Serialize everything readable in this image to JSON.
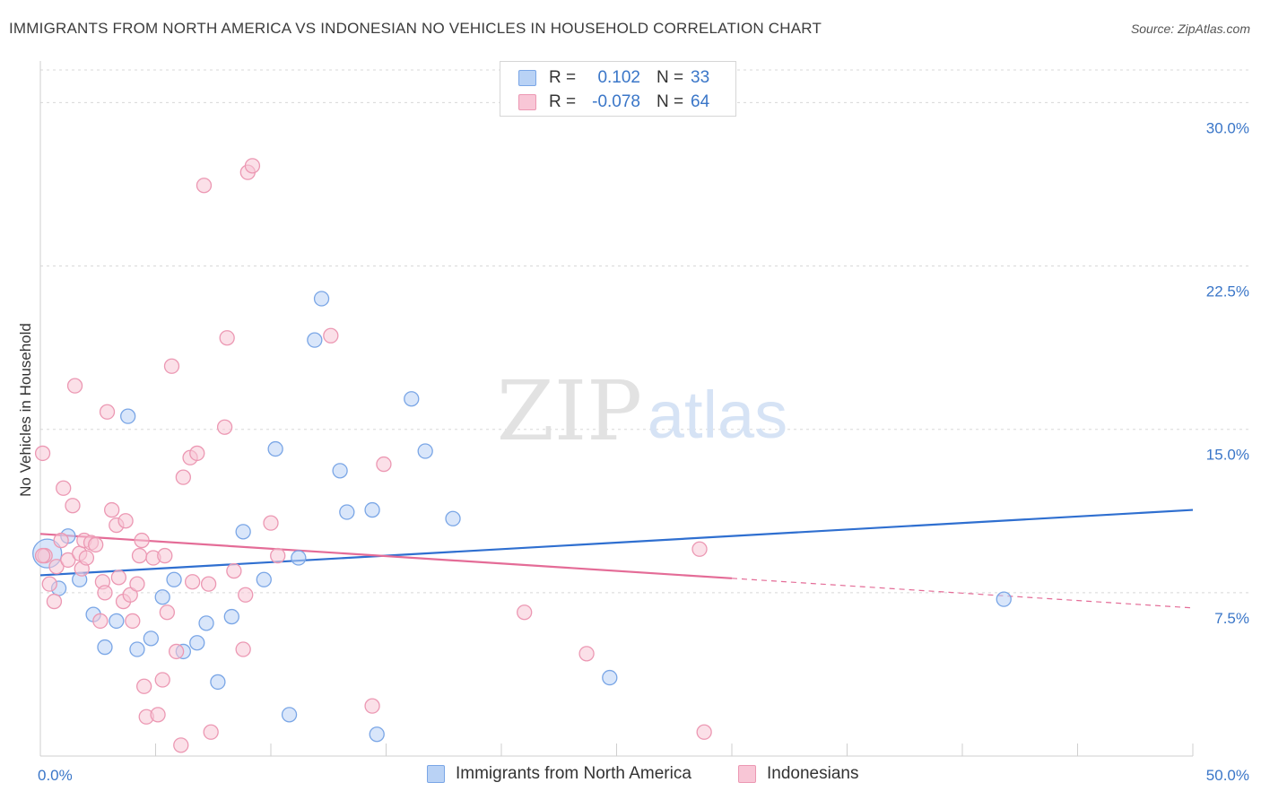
{
  "title": "IMMIGRANTS FROM NORTH AMERICA VS INDONESIAN NO VEHICLES IN HOUSEHOLD CORRELATION CHART",
  "source": "Source: ZipAtlas.com",
  "watermark": {
    "zip": "ZIP",
    "atlas": "atlas"
  },
  "legend": {
    "rows": [
      {
        "r_label": "R =",
        "r_value": "0.102",
        "n_label": "N =",
        "n_value": "33"
      },
      {
        "r_label": "R =",
        "r_value": "-0.078",
        "n_label": "N =",
        "n_value": "64"
      }
    ]
  },
  "bottom_legend": {
    "items": [
      "Immigrants from North America",
      "Indonesians"
    ]
  },
  "colors": {
    "blue_fill": "#b9d2f5",
    "blue_stroke": "#7aa6e6",
    "blue_line": "#2f6fd0",
    "pink_fill": "#f8c6d6",
    "pink_stroke": "#ec98b3",
    "pink_line": "#e46c97",
    "axis_label": "#3a76c8",
    "grid": "#d8d8d8"
  },
  "chart_data": {
    "type": "scatter",
    "title": "IMMIGRANTS FROM NORTH AMERICA VS INDONESIAN NO VEHICLES IN HOUSEHOLD CORRELATION CHART",
    "xlabel": "",
    "ylabel": "No Vehicles in Household",
    "xlim": [
      0,
      50
    ],
    "ylim": [
      0,
      31.5
    ],
    "x_tick_labels": [
      {
        "value": 0,
        "label": "0.0%"
      },
      {
        "value": 50,
        "label": "50.0%"
      }
    ],
    "y_tick_labels": [
      {
        "value": 7.5,
        "label": "7.5%"
      },
      {
        "value": 15.0,
        "label": "15.0%"
      },
      {
        "value": 22.5,
        "label": "22.5%"
      },
      {
        "value": 30.0,
        "label": "30.0%"
      }
    ],
    "series": [
      {
        "name": "Immigrants from North America",
        "color": "blue",
        "trend": {
          "x1": 0,
          "y1": 8.3,
          "x2": 50,
          "y2": 11.3,
          "dash_from": null
        },
        "points": [
          {
            "x": 0.3,
            "y": 9.3,
            "big": true
          },
          {
            "x": 0.8,
            "y": 7.7
          },
          {
            "x": 1.2,
            "y": 10.1
          },
          {
            "x": 1.7,
            "y": 8.1
          },
          {
            "x": 2.3,
            "y": 6.5
          },
          {
            "x": 2.8,
            "y": 5.0
          },
          {
            "x": 3.3,
            "y": 6.2
          },
          {
            "x": 3.8,
            "y": 15.6
          },
          {
            "x": 4.2,
            "y": 4.9
          },
          {
            "x": 4.8,
            "y": 5.4
          },
          {
            "x": 5.3,
            "y": 7.3
          },
          {
            "x": 5.8,
            "y": 8.1
          },
          {
            "x": 6.2,
            "y": 4.8
          },
          {
            "x": 6.8,
            "y": 5.2
          },
          {
            "x": 7.2,
            "y": 6.1
          },
          {
            "x": 7.7,
            "y": 3.4
          },
          {
            "x": 8.3,
            "y": 6.4
          },
          {
            "x": 8.8,
            "y": 10.3
          },
          {
            "x": 9.7,
            "y": 8.1
          },
          {
            "x": 10.2,
            "y": 14.1
          },
          {
            "x": 10.8,
            "y": 1.9
          },
          {
            "x": 11.2,
            "y": 9.1
          },
          {
            "x": 11.9,
            "y": 19.1
          },
          {
            "x": 12.2,
            "y": 21.0
          },
          {
            "x": 13.0,
            "y": 13.1
          },
          {
            "x": 13.3,
            "y": 11.2
          },
          {
            "x": 14.4,
            "y": 11.3
          },
          {
            "x": 14.6,
            "y": 1.0
          },
          {
            "x": 16.1,
            "y": 16.4
          },
          {
            "x": 16.7,
            "y": 14.0
          },
          {
            "x": 17.9,
            "y": 10.9
          },
          {
            "x": 24.7,
            "y": 3.6
          },
          {
            "x": 41.8,
            "y": 7.2
          }
        ]
      },
      {
        "name": "Indonesians",
        "color": "pink",
        "trend": {
          "x1": 0,
          "y1": 10.2,
          "x2": 50,
          "y2": 6.8,
          "dash_from": 30.0
        },
        "points": [
          {
            "x": 0.1,
            "y": 13.9
          },
          {
            "x": 0.2,
            "y": 9.2
          },
          {
            "x": 0.4,
            "y": 7.9
          },
          {
            "x": 0.6,
            "y": 7.1
          },
          {
            "x": 0.7,
            "y": 8.7
          },
          {
            "x": 0.9,
            "y": 9.9
          },
          {
            "x": 1.0,
            "y": 12.3
          },
          {
            "x": 1.2,
            "y": 9.0
          },
          {
            "x": 1.4,
            "y": 11.5
          },
          {
            "x": 1.5,
            "y": 17.0
          },
          {
            "x": 1.7,
            "y": 9.3
          },
          {
            "x": 1.8,
            "y": 8.6
          },
          {
            "x": 1.9,
            "y": 9.9
          },
          {
            "x": 2.0,
            "y": 9.1
          },
          {
            "x": 2.2,
            "y": 9.8
          },
          {
            "x": 2.4,
            "y": 9.7
          },
          {
            "x": 2.6,
            "y": 6.2
          },
          {
            "x": 2.7,
            "y": 8.0
          },
          {
            "x": 2.8,
            "y": 7.5
          },
          {
            "x": 2.9,
            "y": 15.8
          },
          {
            "x": 3.1,
            "y": 11.3
          },
          {
            "x": 3.3,
            "y": 10.6
          },
          {
            "x": 3.4,
            "y": 8.2
          },
          {
            "x": 3.6,
            "y": 7.1
          },
          {
            "x": 3.7,
            "y": 10.8
          },
          {
            "x": 3.9,
            "y": 7.4
          },
          {
            "x": 4.0,
            "y": 6.2
          },
          {
            "x": 4.2,
            "y": 7.9
          },
          {
            "x": 4.3,
            "y": 9.2
          },
          {
            "x": 4.4,
            "y": 9.9
          },
          {
            "x": 4.5,
            "y": 3.2
          },
          {
            "x": 4.6,
            "y": 1.8
          },
          {
            "x": 4.9,
            "y": 9.1
          },
          {
            "x": 5.1,
            "y": 1.9
          },
          {
            "x": 5.3,
            "y": 3.5
          },
          {
            "x": 5.4,
            "y": 9.2
          },
          {
            "x": 5.5,
            "y": 6.6
          },
          {
            "x": 5.7,
            "y": 17.9
          },
          {
            "x": 5.9,
            "y": 4.8
          },
          {
            "x": 6.1,
            "y": 0.5
          },
          {
            "x": 6.2,
            "y": 12.8
          },
          {
            "x": 6.5,
            "y": 13.7
          },
          {
            "x": 6.6,
            "y": 8.0
          },
          {
            "x": 6.8,
            "y": 13.9
          },
          {
            "x": 7.1,
            "y": 26.2
          },
          {
            "x": 7.3,
            "y": 7.9
          },
          {
            "x": 7.4,
            "y": 1.1
          },
          {
            "x": 8.0,
            "y": 15.1
          },
          {
            "x": 8.1,
            "y": 19.2
          },
          {
            "x": 8.4,
            "y": 8.5
          },
          {
            "x": 8.8,
            "y": 4.9
          },
          {
            "x": 8.9,
            "y": 7.4
          },
          {
            "x": 9.0,
            "y": 26.8
          },
          {
            "x": 9.2,
            "y": 27.1
          },
          {
            "x": 10.0,
            "y": 10.7
          },
          {
            "x": 10.3,
            "y": 9.2
          },
          {
            "x": 12.6,
            "y": 19.3
          },
          {
            "x": 14.4,
            "y": 2.3
          },
          {
            "x": 14.9,
            "y": 13.4
          },
          {
            "x": 21.0,
            "y": 6.6
          },
          {
            "x": 23.7,
            "y": 4.7
          },
          {
            "x": 28.6,
            "y": 9.5
          },
          {
            "x": 28.8,
            "y": 1.1
          },
          {
            "x": 0.1,
            "y": 9.2
          }
        ]
      }
    ]
  }
}
